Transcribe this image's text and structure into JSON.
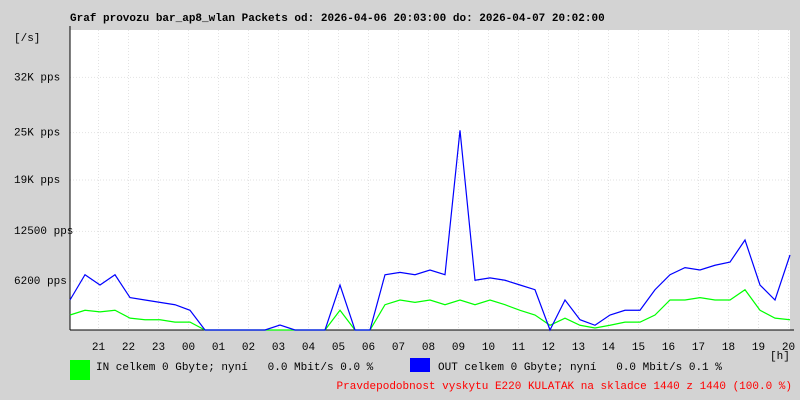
{
  "chart_data": {
    "type": "line",
    "title": "Graf provozu bar_ap8_wlan Packets od: 2026-04-06 20:03:00 do: 2026-04-07 20:02:00",
    "y_unit": "[/s]",
    "x_unit": "[h]",
    "x": [
      0,
      0.5,
      1,
      1.5,
      2,
      2.5,
      3,
      3.5,
      4,
      4.5,
      5,
      5.5,
      6,
      6.5,
      7,
      7.5,
      8,
      8.5,
      9,
      9.5,
      10,
      10.5,
      11,
      11.5,
      12,
      12.5,
      13,
      13.5,
      14,
      14.5,
      15,
      15.5,
      16,
      16.5,
      17,
      17.5,
      18,
      18.5,
      19,
      19.5,
      20,
      20.5,
      21,
      21.5,
      22,
      22.5,
      23,
      23.5,
      24
    ],
    "xlim": [
      0,
      24
    ],
    "xticks": [
      {
        "value": 0.95,
        "label": "21"
      },
      {
        "value": 1.95,
        "label": "22"
      },
      {
        "value": 2.95,
        "label": "23"
      },
      {
        "value": 3.95,
        "label": "00"
      },
      {
        "value": 4.95,
        "label": "01"
      },
      {
        "value": 5.95,
        "label": "02"
      },
      {
        "value": 6.95,
        "label": "03"
      },
      {
        "value": 7.95,
        "label": "04"
      },
      {
        "value": 8.95,
        "label": "05"
      },
      {
        "value": 9.95,
        "label": "06"
      },
      {
        "value": 10.95,
        "label": "07"
      },
      {
        "value": 11.95,
        "label": "08"
      },
      {
        "value": 12.95,
        "label": "09"
      },
      {
        "value": 13.95,
        "label": "10"
      },
      {
        "value": 14.95,
        "label": "11"
      },
      {
        "value": 15.95,
        "label": "12"
      },
      {
        "value": 16.95,
        "label": "13"
      },
      {
        "value": 17.95,
        "label": "14"
      },
      {
        "value": 18.95,
        "label": "15"
      },
      {
        "value": 19.95,
        "label": "16"
      },
      {
        "value": 20.95,
        "label": "17"
      },
      {
        "value": 21.95,
        "label": "18"
      },
      {
        "value": 22.95,
        "label": "19"
      },
      {
        "value": 23.95,
        "label": "20"
      }
    ],
    "ylim": [
      0,
      38000
    ],
    "yticks": [
      {
        "value": 6200,
        "label": "6200 pps"
      },
      {
        "value": 12500,
        "label": "12500 pps"
      },
      {
        "value": 19000,
        "label": "19K pps"
      },
      {
        "value": 25000,
        "label": "25K pps"
      },
      {
        "value": 32000,
        "label": "32K pps"
      }
    ],
    "grid": true,
    "series": [
      {
        "name": "IN celkem 0 Gbyte; nyní   0.0 Mbit/s 0.0 %",
        "color": "#00ff00",
        "values": [
          1900,
          2500,
          2300,
          2500,
          1500,
          1300,
          1300,
          1000,
          1000,
          0,
          0,
          0,
          0,
          0,
          0,
          0,
          0,
          0,
          2500,
          0,
          0,
          3200,
          3800,
          3500,
          3800,
          3200,
          3800,
          3200,
          3800,
          3200,
          2500,
          1900,
          600,
          1500,
          600,
          250,
          600,
          1000,
          1000,
          1900,
          3800,
          3800,
          4100,
          3800,
          3800,
          5100,
          2500,
          1500,
          1300
        ]
      },
      {
        "name": "OUT celkem 0 Gbyte; nyní   0.0 Mbit/s 0.1 %",
        "color": "#0000ff",
        "values": [
          3800,
          7000,
          5700,
          7000,
          4100,
          3800,
          3500,
          3200,
          2500,
          0,
          0,
          0,
          0,
          0,
          630,
          0,
          0,
          0,
          5700,
          0,
          0,
          7000,
          7300,
          7000,
          7600,
          7000,
          25300,
          6300,
          6600,
          6300,
          5700,
          5100,
          0,
          3800,
          1300,
          600,
          1900,
          2500,
          2500,
          5100,
          7000,
          7900,
          7600,
          8200,
          8600,
          11400,
          5700,
          3800,
          9500
        ]
      }
    ],
    "footer": "Pravdepodobnost vyskytu E220 KULATAK na skladce 1440 z 1440 (100.0 %)"
  }
}
